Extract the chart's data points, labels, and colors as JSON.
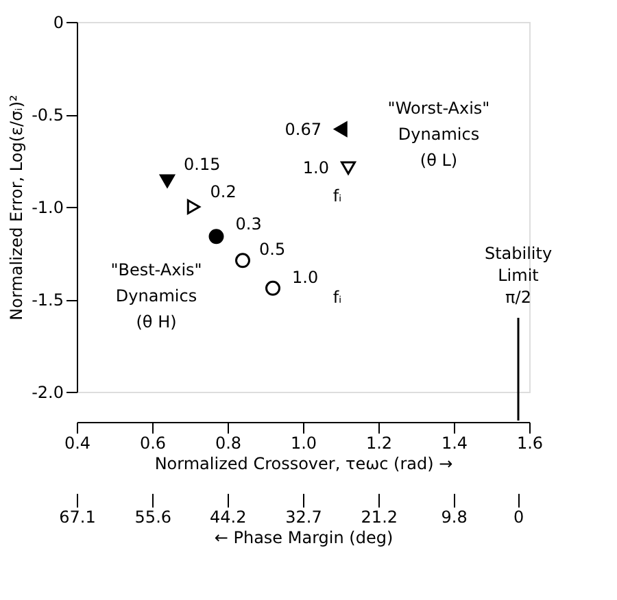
{
  "chart_data": {
    "type": "scatter",
    "xlabel": "Normalized Crossover, τeωc (rad) →",
    "ylabel": "Normalized Error, Log(ε/σᵢ)²",
    "x2label": "← Phase Margin (deg)",
    "xlim": [
      0.4,
      1.6
    ],
    "xticks": [
      {
        "value": 0.4,
        "label": "0.4"
      },
      {
        "value": 0.6,
        "label": "0.6"
      },
      {
        "value": 0.8,
        "label": "0.8"
      },
      {
        "value": 1.0,
        "label": "1.0"
      },
      {
        "value": 1.2,
        "label": "1.2"
      },
      {
        "value": 1.4,
        "label": "1.4"
      },
      {
        "value": 1.6,
        "label": "1.6"
      }
    ],
    "ylim": [
      -2.0,
      0
    ],
    "yticks": [
      {
        "value": 0,
        "label": "0"
      },
      {
        "value": -0.5,
        "label": "-0.5"
      },
      {
        "value": -1.0,
        "label": "-1.0"
      },
      {
        "value": -1.5,
        "label": "-1.5"
      },
      {
        "value": -2.0,
        "label": "-2.0"
      }
    ],
    "x2lim": [
      67.1,
      -1.7
    ],
    "x2ticks": [
      67.1,
      55.6,
      44.2,
      32.7,
      21.2,
      9.8,
      0
    ],
    "grid": false,
    "legend": false,
    "series": [
      {
        "color": "#000000",
        "marker": "triangle-down",
        "x": [
          0.64
        ],
        "values": [
          -0.86
        ]
      },
      {
        "color": "#000000",
        "marker": "triangle-right-open",
        "x": [
          0.71
        ],
        "values": [
          -1.0
        ]
      },
      {
        "color": "#000000",
        "marker": "circle",
        "x": [
          0.77
        ],
        "values": [
          -1.16
        ]
      },
      {
        "color": "#000000",
        "marker": "circle-open",
        "x": [
          0.84
        ],
        "values": [
          -1.29
        ]
      },
      {
        "color": "#000000",
        "marker": "circle-open",
        "x": [
          0.92
        ],
        "values": [
          -1.44
        ]
      },
      {
        "color": "#000000",
        "marker": "triangle-left",
        "x": [
          1.1
        ],
        "values": [
          -0.58
        ]
      },
      {
        "color": "#000000",
        "marker": "triangle-down-open",
        "x": [
          1.12
        ],
        "values": [
          -0.79
        ]
      }
    ],
    "annotations": [
      "0.15",
      "0.2",
      "0.3",
      "0.5",
      "1.0",
      "0.67",
      "1.0",
      "fᵢ",
      "fᵢ",
      "\"Worst-Axis\"\nDynamics\n(θ L)",
      "\"Best-Axis\"\nDynamics\n(θ H)",
      "Stability\nLimit\nπ/2"
    ]
  }
}
